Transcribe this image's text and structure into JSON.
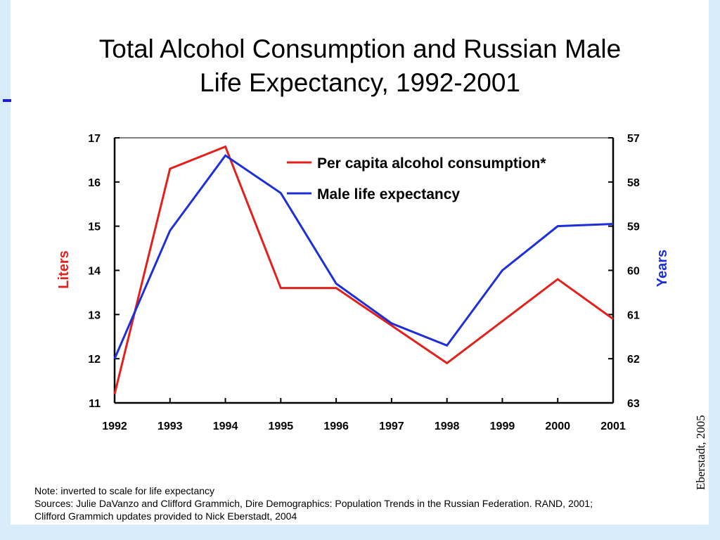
{
  "slide": {
    "title_line1": "Total Alcohol Consumption and Russian Male",
    "title_line2": "Life Expectancy, 1992-2001",
    "credit": "Eberstadt, 2005",
    "note": "Note: inverted to scale for life expectancy",
    "sources_line1": "Sources: Julie DaVanzo and Clifford Grammich, Dire Demographics: Population Trends in the Russian Federation.  RAND, 2001;",
    "sources_line2": "Clifford Grammich updates provided to Nick Eberstadt, 2004"
  },
  "colors": {
    "alcohol": "#e3211c",
    "life": "#1c2fd8",
    "background": "#d8ecf9",
    "accent": "#1c1cd6"
  },
  "chart_data": {
    "type": "line",
    "title": "Total Alcohol Consumption and Russian Male Life Expectancy, 1992-2001",
    "x": [
      "1992",
      "1993",
      "1994",
      "1995",
      "1996",
      "1997",
      "1998",
      "1999",
      "2000",
      "2001"
    ],
    "series": [
      {
        "name": "Per capita alcohol consumption*",
        "axis": "left",
        "values": [
          11.2,
          16.3,
          16.8,
          13.6,
          13.6,
          12.75,
          11.9,
          12.85,
          13.8,
          12.9
        ]
      },
      {
        "name": "Male life expectancy",
        "axis": "right",
        "values": [
          62.0,
          59.1,
          57.4,
          58.25,
          60.3,
          61.2,
          61.7,
          60.0,
          59.0,
          58.95
        ]
      }
    ],
    "ylabel_left": "Liters",
    "ylim_left": [
      11,
      17
    ],
    "yticks_left": [
      "11",
      "12",
      "13",
      "14",
      "15",
      "16",
      "17"
    ],
    "ylabel_right": "Years",
    "ylim_right": [
      57,
      63
    ],
    "yright_inverted": true,
    "yticks_right": [
      "57",
      "58",
      "59",
      "60",
      "61",
      "62",
      "63"
    ],
    "grid": false,
    "legend_position": "top-right"
  }
}
